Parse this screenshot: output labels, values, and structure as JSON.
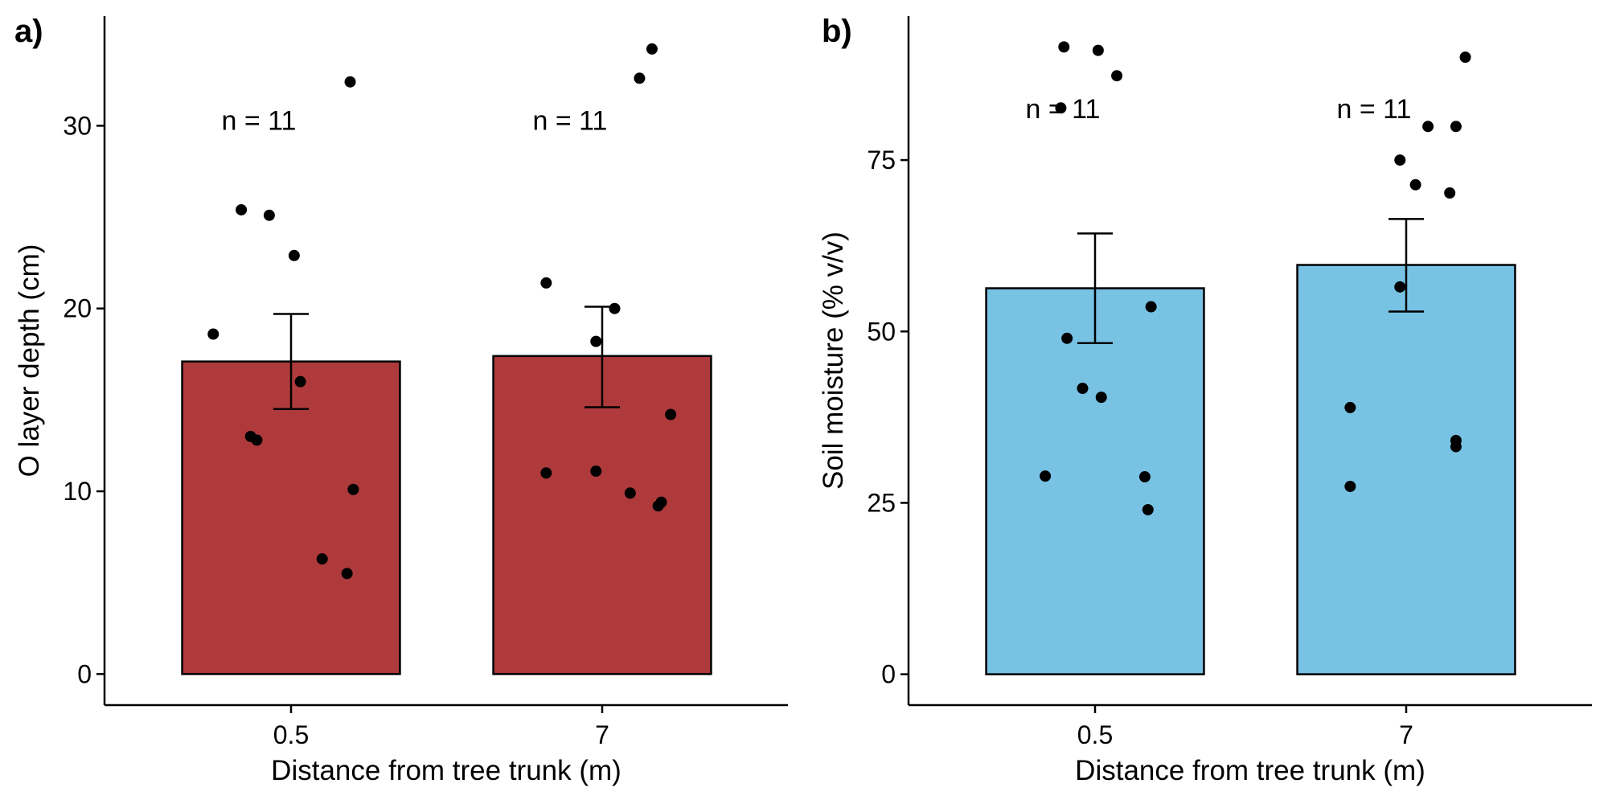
{
  "chart_data": [
    {
      "type": "bar",
      "panel_label": "a)",
      "title": "",
      "xlabel": "Distance from tree trunk (m)",
      "ylabel": "O layer depth (cm)",
      "ylim": [
        -1.7,
        36
      ],
      "yticks": [
        0,
        10,
        20,
        30
      ],
      "categories": [
        "0.5",
        "7"
      ],
      "values": [
        17.1,
        17.4
      ],
      "error_low": [
        14.5,
        14.6
      ],
      "error_high": [
        19.7,
        20.1
      ],
      "bar_color": "#AF3A3C",
      "n_labels": [
        "n = 11",
        "n = 11"
      ],
      "n_label_y": 30.3,
      "points": [
        {
          "category": 0,
          "jitter": -0.25,
          "y": 18.6
        },
        {
          "category": 0,
          "jitter": -0.16,
          "y": 25.4
        },
        {
          "category": 0,
          "jitter": -0.07,
          "y": 25.1
        },
        {
          "category": 0,
          "jitter": 0.01,
          "y": 22.9
        },
        {
          "category": 0,
          "jitter": 0.03,
          "y": 16.0
        },
        {
          "category": 0,
          "jitter": -0.13,
          "y": 13.0
        },
        {
          "category": 0,
          "jitter": -0.11,
          "y": 12.8
        },
        {
          "category": 0,
          "jitter": 0.19,
          "y": 32.4
        },
        {
          "category": 0,
          "jitter": 0.2,
          "y": 10.1
        },
        {
          "category": 0,
          "jitter": 0.1,
          "y": 6.3
        },
        {
          "category": 0,
          "jitter": 0.18,
          "y": 5.5
        },
        {
          "category": 1,
          "jitter": -0.18,
          "y": 21.4
        },
        {
          "category": 1,
          "jitter": -0.02,
          "y": 18.2
        },
        {
          "category": 1,
          "jitter": 0.04,
          "y": 20.0
        },
        {
          "category": 1,
          "jitter": 0.22,
          "y": 14.2
        },
        {
          "category": 1,
          "jitter": -0.18,
          "y": 11.0
        },
        {
          "category": 1,
          "jitter": -0.02,
          "y": 11.1
        },
        {
          "category": 1,
          "jitter": 0.09,
          "y": 9.9
        },
        {
          "category": 1,
          "jitter": 0.18,
          "y": 9.2
        },
        {
          "category": 1,
          "jitter": 0.19,
          "y": 9.4
        },
        {
          "category": 1,
          "jitter": 0.12,
          "y": 32.6
        },
        {
          "category": 1,
          "jitter": 0.16,
          "y": 34.2
        }
      ]
    },
    {
      "type": "bar",
      "panel_label": "b)",
      "title": "",
      "xlabel": "Distance from tree trunk (m)",
      "ylabel": "Soil moisture (% v/v)",
      "ylim": [
        -4.5,
        96
      ],
      "yticks": [
        0,
        25,
        50,
        75
      ],
      "categories": [
        "0.5",
        "7"
      ],
      "values": [
        56.3,
        59.7
      ],
      "error_low": [
        48.3,
        52.9
      ],
      "error_high": [
        64.3,
        66.4
      ],
      "bar_color": "#78C2E4",
      "n_labels": [
        "n = 11",
        "n = 11"
      ],
      "n_label_y": 82.5,
      "points": [
        {
          "category": 0,
          "jitter": -0.1,
          "y": 91.5
        },
        {
          "category": 0,
          "jitter": 0.01,
          "y": 91.0
        },
        {
          "category": 0,
          "jitter": 0.07,
          "y": 87.3
        },
        {
          "category": 0,
          "jitter": -0.11,
          "y": 82.6
        },
        {
          "category": 0,
          "jitter": -0.09,
          "y": 49.0
        },
        {
          "category": 0,
          "jitter": 0.18,
          "y": 53.6
        },
        {
          "category": 0,
          "jitter": -0.04,
          "y": 41.7
        },
        {
          "category": 0,
          "jitter": 0.02,
          "y": 40.4
        },
        {
          "category": 0,
          "jitter": -0.16,
          "y": 28.9
        },
        {
          "category": 0,
          "jitter": 0.16,
          "y": 28.8
        },
        {
          "category": 0,
          "jitter": 0.17,
          "y": 24.0
        },
        {
          "category": 1,
          "jitter": 0.19,
          "y": 90.0
        },
        {
          "category": 1,
          "jitter": 0.07,
          "y": 79.9
        },
        {
          "category": 1,
          "jitter": 0.16,
          "y": 79.9
        },
        {
          "category": 1,
          "jitter": -0.02,
          "y": 75.0
        },
        {
          "category": 1,
          "jitter": 0.03,
          "y": 71.4
        },
        {
          "category": 1,
          "jitter": 0.14,
          "y": 70.2
        },
        {
          "category": 1,
          "jitter": -0.02,
          "y": 56.5
        },
        {
          "category": 1,
          "jitter": -0.18,
          "y": 38.9
        },
        {
          "category": 1,
          "jitter": 0.16,
          "y": 34.1
        },
        {
          "category": 1,
          "jitter": 0.16,
          "y": 33.2
        },
        {
          "category": 1,
          "jitter": -0.18,
          "y": 27.4
        }
      ]
    }
  ]
}
